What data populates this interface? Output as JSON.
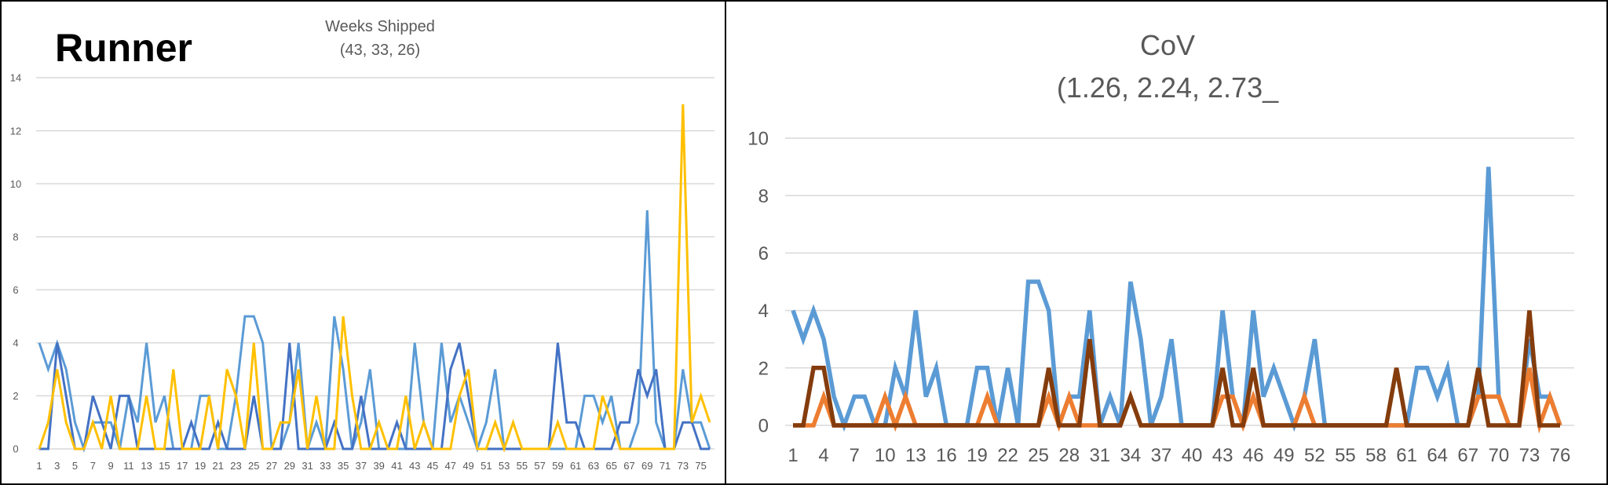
{
  "overlay": {
    "label": "Runner"
  },
  "chart_data": [
    {
      "type": "line",
      "title": "Weeks Shipped",
      "subtitle": "(43, 33, 26)",
      "xlabel": "",
      "ylabel": "",
      "ylim": [
        0,
        14
      ],
      "yticks": [
        0,
        2,
        4,
        6,
        8,
        10,
        12,
        14
      ],
      "x": [
        1,
        2,
        3,
        4,
        5,
        6,
        7,
        8,
        9,
        10,
        11,
        12,
        13,
        14,
        15,
        16,
        17,
        18,
        19,
        20,
        21,
        22,
        23,
        24,
        25,
        26,
        27,
        28,
        29,
        30,
        31,
        32,
        33,
        34,
        35,
        36,
        37,
        38,
        39,
        40,
        41,
        42,
        43,
        44,
        45,
        46,
        47,
        48,
        49,
        50,
        51,
        52,
        53,
        54,
        55,
        56,
        57,
        58,
        59,
        60,
        61,
        62,
        63,
        64,
        65,
        66,
        67,
        68,
        69,
        70,
        71,
        72,
        73,
        74,
        75,
        76
      ],
      "xtick_labels": [
        "1",
        "3",
        "5",
        "7",
        "9",
        "11",
        "13",
        "15",
        "17",
        "19",
        "21",
        "23",
        "25",
        "27",
        "29",
        "31",
        "33",
        "35",
        "37",
        "39",
        "41",
        "43",
        "45",
        "47",
        "49",
        "51",
        "53",
        "55",
        "57",
        "59",
        "61",
        "63",
        "65",
        "67",
        "69",
        "71",
        "73",
        "75"
      ],
      "grid": true,
      "legend": "none",
      "series": [
        {
          "color": "#5B9BD5",
          "values": [
            4,
            3,
            4,
            3,
            1,
            0,
            1,
            1,
            1,
            0,
            2,
            1,
            4,
            1,
            2,
            0,
            0,
            0,
            2,
            2,
            0,
            0,
            2,
            5,
            5,
            4,
            0,
            0,
            1,
            4,
            0,
            1,
            0,
            5,
            3,
            0,
            1,
            3,
            0,
            0,
            0,
            0,
            4,
            1,
            0,
            4,
            1,
            2,
            1,
            0,
            1,
            3,
            0,
            0,
            0,
            0,
            0,
            0,
            0,
            0,
            0,
            2,
            2,
            1,
            2,
            0,
            0,
            1,
            9,
            1,
            0,
            0,
            3,
            1,
            1,
            0
          ]
        },
        {
          "color": "#4472C4",
          "values": [
            0,
            0,
            4,
            2,
            0,
            0,
            2,
            1,
            0,
            2,
            2,
            0,
            0,
            0,
            0,
            0,
            0,
            1,
            0,
            0,
            1,
            0,
            0,
            0,
            2,
            0,
            0,
            0,
            4,
            0,
            0,
            0,
            0,
            1,
            0,
            0,
            2,
            0,
            0,
            0,
            1,
            0,
            0,
            0,
            0,
            0,
            3,
            4,
            2,
            0,
            0,
            0,
            0,
            0,
            0,
            0,
            0,
            0,
            4,
            1,
            1,
            0,
            0,
            0,
            0,
            1,
            1,
            3,
            2,
            3,
            0,
            0,
            1,
            1,
            0,
            0
          ]
        },
        {
          "color": "#FFC000",
          "values": [
            0,
            1,
            3,
            1,
            0,
            0,
            1,
            0,
            2,
            0,
            0,
            0,
            2,
            0,
            0,
            3,
            0,
            0,
            0,
            2,
            0,
            3,
            2,
            0,
            4,
            0,
            0,
            1,
            1,
            3,
            0,
            2,
            0,
            0,
            5,
            2,
            0,
            0,
            1,
            0,
            0,
            2,
            0,
            1,
            0,
            0,
            0,
            2,
            3,
            0,
            0,
            1,
            0,
            1,
            0,
            0,
            0,
            0,
            1,
            0,
            0,
            0,
            0,
            2,
            1,
            0,
            0,
            0,
            0,
            0,
            0,
            0,
            13,
            1,
            2,
            1
          ]
        }
      ]
    },
    {
      "type": "line",
      "title": "CoV",
      "subtitle": "(1.26, 2.24, 2.73_",
      "xlabel": "",
      "ylabel": "",
      "ylim": [
        0,
        10
      ],
      "yticks": [
        0,
        2,
        4,
        6,
        8,
        10
      ],
      "x": [
        1,
        2,
        3,
        4,
        5,
        6,
        7,
        8,
        9,
        10,
        11,
        12,
        13,
        14,
        15,
        16,
        17,
        18,
        19,
        20,
        21,
        22,
        23,
        24,
        25,
        26,
        27,
        28,
        29,
        30,
        31,
        32,
        33,
        34,
        35,
        36,
        37,
        38,
        39,
        40,
        41,
        42,
        43,
        44,
        45,
        46,
        47,
        48,
        49,
        50,
        51,
        52,
        53,
        54,
        55,
        56,
        57,
        58,
        59,
        60,
        61,
        62,
        63,
        64,
        65,
        66,
        67,
        68,
        69,
        70,
        71,
        72,
        73,
        74,
        75,
        76
      ],
      "xtick_labels": [
        "1",
        "4",
        "7",
        "10",
        "13",
        "16",
        "19",
        "22",
        "25",
        "28",
        "31",
        "34",
        "37",
        "40",
        "43",
        "46",
        "49",
        "52",
        "55",
        "58",
        "61",
        "64",
        "67",
        "70",
        "73",
        "76"
      ],
      "grid": true,
      "legend": "none",
      "series": [
        {
          "color": "#5B9BD5",
          "values": [
            4,
            3,
            4,
            3,
            1,
            0,
            1,
            1,
            0,
            0,
            2,
            1,
            4,
            1,
            2,
            0,
            0,
            0,
            2,
            2,
            0,
            2,
            0,
            5,
            5,
            4,
            0,
            1,
            1,
            4,
            0,
            1,
            0,
            5,
            3,
            0,
            1,
            3,
            0,
            0,
            0,
            0,
            4,
            1,
            0,
            4,
            1,
            2,
            1,
            0,
            1,
            3,
            0,
            0,
            0,
            0,
            0,
            0,
            0,
            0,
            0,
            2,
            2,
            1,
            2,
            0,
            0,
            1,
            9,
            1,
            0,
            0,
            3,
            1,
            1,
            0
          ]
        },
        {
          "color": "#ED7D31",
          "values": [
            0,
            0,
            0,
            1,
            0,
            0,
            0,
            0,
            0,
            1,
            0,
            1,
            0,
            0,
            0,
            0,
            0,
            0,
            0,
            1,
            0,
            0,
            0,
            0,
            0,
            1,
            0,
            1,
            0,
            0,
            0,
            0,
            0,
            1,
            0,
            0,
            0,
            0,
            0,
            0,
            0,
            0,
            1,
            1,
            0,
            1,
            0,
            0,
            0,
            0,
            1,
            0,
            0,
            0,
            0,
            0,
            0,
            0,
            0,
            0,
            0,
            0,
            0,
            0,
            0,
            0,
            0,
            1,
            1,
            1,
            0,
            0,
            2,
            0,
            1,
            0
          ]
        },
        {
          "color": "#843C0C",
          "values": [
            0,
            0,
            2,
            2,
            0,
            0,
            0,
            0,
            0,
            0,
            0,
            0,
            0,
            0,
            0,
            0,
            0,
            0,
            0,
            0,
            0,
            0,
            0,
            0,
            0,
            2,
            0,
            0,
            0,
            3,
            0,
            0,
            0,
            1,
            0,
            0,
            0,
            0,
            0,
            0,
            0,
            0,
            2,
            0,
            0,
            2,
            0,
            0,
            0,
            0,
            0,
            0,
            0,
            0,
            0,
            0,
            0,
            0,
            0,
            2,
            0,
            0,
            0,
            0,
            0,
            0,
            0,
            2,
            0,
            0,
            0,
            0,
            4,
            0,
            0,
            0
          ]
        }
      ]
    }
  ]
}
